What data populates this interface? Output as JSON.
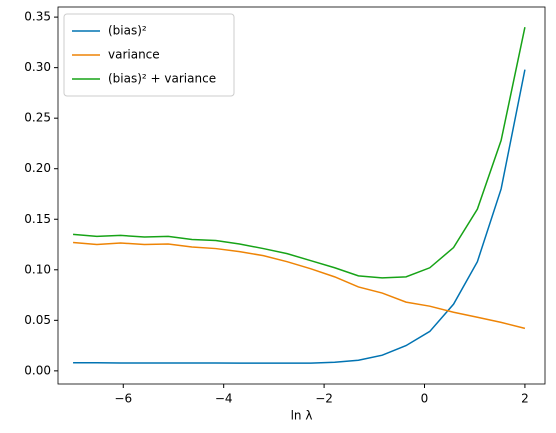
{
  "chart_data": {
    "type": "line",
    "x": [
      -7,
      -6.526,
      -6.053,
      -5.579,
      -5.105,
      -4.632,
      -4.158,
      -3.684,
      -3.211,
      -2.737,
      -2.263,
      -1.789,
      -1.316,
      -0.842,
      -0.368,
      0.105,
      0.579,
      1.053,
      1.526,
      2
    ],
    "series": [
      {
        "name": "(bias)²",
        "color": "#0173b2",
        "values": [
          0.008,
          0.008,
          0.0078,
          0.0078,
          0.0078,
          0.0078,
          0.0078,
          0.0076,
          0.0077,
          0.0076,
          0.0076,
          0.0085,
          0.0105,
          0.0155,
          0.025,
          0.039,
          0.066,
          0.108,
          0.18,
          0.298
        ]
      },
      {
        "name": "variance",
        "color": "#ee8406",
        "values": [
          0.127,
          0.125,
          0.1265,
          0.125,
          0.1255,
          0.1225,
          0.121,
          0.118,
          0.114,
          0.108,
          0.101,
          0.093,
          0.083,
          0.077,
          0.068,
          0.064,
          0.058,
          0.053,
          0.048,
          0.042
        ]
      },
      {
        "name": "(bias)² + variance",
        "color": "#17a317",
        "values": [
          0.135,
          0.133,
          0.134,
          0.1325,
          0.133,
          0.13,
          0.129,
          0.1255,
          0.121,
          0.116,
          0.109,
          0.102,
          0.094,
          0.092,
          0.093,
          0.102,
          0.122,
          0.16,
          0.228,
          0.34
        ]
      }
    ],
    "x_label": "ln λ",
    "xlim": [
      -7.3,
      2.4
    ],
    "xticks": [
      {
        "value": -6,
        "label": "−6"
      },
      {
        "value": -4,
        "label": "−4"
      },
      {
        "value": -2,
        "label": "−2"
      },
      0,
      2
    ],
    "ylim": [
      -0.013,
      0.36
    ],
    "yticks": [
      {
        "value": 0,
        "label": "0.00"
      },
      {
        "value": 0.05,
        "label": "0.05"
      },
      {
        "value": 0.1,
        "label": "0.10"
      },
      {
        "value": 0.15,
        "label": "0.15"
      },
      {
        "value": 0.2,
        "label": "0.20"
      },
      {
        "value": 0.25,
        "label": "0.25"
      },
      {
        "value": 0.3,
        "label": "0.30"
      },
      {
        "value": 0.35,
        "label": "0.35"
      }
    ],
    "legend": "upper left",
    "grid": false
  }
}
